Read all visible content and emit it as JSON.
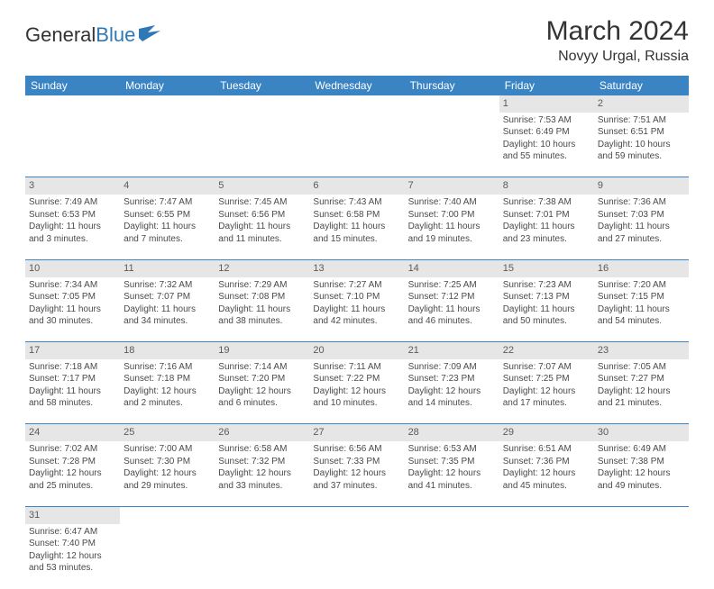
{
  "logo": {
    "text1": "General",
    "text2": "Blue"
  },
  "title": "March 2024",
  "location": "Novyy Urgal, Russia",
  "colors": {
    "header_bg": "#3a84c4",
    "daynum_bg": "#e6e6e6",
    "text": "#333333"
  },
  "weekdays": [
    "Sunday",
    "Monday",
    "Tuesday",
    "Wednesday",
    "Thursday",
    "Friday",
    "Saturday"
  ],
  "weeks": [
    {
      "nums": [
        "",
        "",
        "",
        "",
        "",
        "1",
        "2"
      ],
      "cells": [
        {
          "sr": "",
          "ss": "",
          "dl": ""
        },
        {
          "sr": "",
          "ss": "",
          "dl": ""
        },
        {
          "sr": "",
          "ss": "",
          "dl": ""
        },
        {
          "sr": "",
          "ss": "",
          "dl": ""
        },
        {
          "sr": "",
          "ss": "",
          "dl": ""
        },
        {
          "sr": "Sunrise: 7:53 AM",
          "ss": "Sunset: 6:49 PM",
          "dl": "Daylight: 10 hours and 55 minutes."
        },
        {
          "sr": "Sunrise: 7:51 AM",
          "ss": "Sunset: 6:51 PM",
          "dl": "Daylight: 10 hours and 59 minutes."
        }
      ]
    },
    {
      "nums": [
        "3",
        "4",
        "5",
        "6",
        "7",
        "8",
        "9"
      ],
      "cells": [
        {
          "sr": "Sunrise: 7:49 AM",
          "ss": "Sunset: 6:53 PM",
          "dl": "Daylight: 11 hours and 3 minutes."
        },
        {
          "sr": "Sunrise: 7:47 AM",
          "ss": "Sunset: 6:55 PM",
          "dl": "Daylight: 11 hours and 7 minutes."
        },
        {
          "sr": "Sunrise: 7:45 AM",
          "ss": "Sunset: 6:56 PM",
          "dl": "Daylight: 11 hours and 11 minutes."
        },
        {
          "sr": "Sunrise: 7:43 AM",
          "ss": "Sunset: 6:58 PM",
          "dl": "Daylight: 11 hours and 15 minutes."
        },
        {
          "sr": "Sunrise: 7:40 AM",
          "ss": "Sunset: 7:00 PM",
          "dl": "Daylight: 11 hours and 19 minutes."
        },
        {
          "sr": "Sunrise: 7:38 AM",
          "ss": "Sunset: 7:01 PM",
          "dl": "Daylight: 11 hours and 23 minutes."
        },
        {
          "sr": "Sunrise: 7:36 AM",
          "ss": "Sunset: 7:03 PM",
          "dl": "Daylight: 11 hours and 27 minutes."
        }
      ]
    },
    {
      "nums": [
        "10",
        "11",
        "12",
        "13",
        "14",
        "15",
        "16"
      ],
      "cells": [
        {
          "sr": "Sunrise: 7:34 AM",
          "ss": "Sunset: 7:05 PM",
          "dl": "Daylight: 11 hours and 30 minutes."
        },
        {
          "sr": "Sunrise: 7:32 AM",
          "ss": "Sunset: 7:07 PM",
          "dl": "Daylight: 11 hours and 34 minutes."
        },
        {
          "sr": "Sunrise: 7:29 AM",
          "ss": "Sunset: 7:08 PM",
          "dl": "Daylight: 11 hours and 38 minutes."
        },
        {
          "sr": "Sunrise: 7:27 AM",
          "ss": "Sunset: 7:10 PM",
          "dl": "Daylight: 11 hours and 42 minutes."
        },
        {
          "sr": "Sunrise: 7:25 AM",
          "ss": "Sunset: 7:12 PM",
          "dl": "Daylight: 11 hours and 46 minutes."
        },
        {
          "sr": "Sunrise: 7:23 AM",
          "ss": "Sunset: 7:13 PM",
          "dl": "Daylight: 11 hours and 50 minutes."
        },
        {
          "sr": "Sunrise: 7:20 AM",
          "ss": "Sunset: 7:15 PM",
          "dl": "Daylight: 11 hours and 54 minutes."
        }
      ]
    },
    {
      "nums": [
        "17",
        "18",
        "19",
        "20",
        "21",
        "22",
        "23"
      ],
      "cells": [
        {
          "sr": "Sunrise: 7:18 AM",
          "ss": "Sunset: 7:17 PM",
          "dl": "Daylight: 11 hours and 58 minutes."
        },
        {
          "sr": "Sunrise: 7:16 AM",
          "ss": "Sunset: 7:18 PM",
          "dl": "Daylight: 12 hours and 2 minutes."
        },
        {
          "sr": "Sunrise: 7:14 AM",
          "ss": "Sunset: 7:20 PM",
          "dl": "Daylight: 12 hours and 6 minutes."
        },
        {
          "sr": "Sunrise: 7:11 AM",
          "ss": "Sunset: 7:22 PM",
          "dl": "Daylight: 12 hours and 10 minutes."
        },
        {
          "sr": "Sunrise: 7:09 AM",
          "ss": "Sunset: 7:23 PM",
          "dl": "Daylight: 12 hours and 14 minutes."
        },
        {
          "sr": "Sunrise: 7:07 AM",
          "ss": "Sunset: 7:25 PM",
          "dl": "Daylight: 12 hours and 17 minutes."
        },
        {
          "sr": "Sunrise: 7:05 AM",
          "ss": "Sunset: 7:27 PM",
          "dl": "Daylight: 12 hours and 21 minutes."
        }
      ]
    },
    {
      "nums": [
        "24",
        "25",
        "26",
        "27",
        "28",
        "29",
        "30"
      ],
      "cells": [
        {
          "sr": "Sunrise: 7:02 AM",
          "ss": "Sunset: 7:28 PM",
          "dl": "Daylight: 12 hours and 25 minutes."
        },
        {
          "sr": "Sunrise: 7:00 AM",
          "ss": "Sunset: 7:30 PM",
          "dl": "Daylight: 12 hours and 29 minutes."
        },
        {
          "sr": "Sunrise: 6:58 AM",
          "ss": "Sunset: 7:32 PM",
          "dl": "Daylight: 12 hours and 33 minutes."
        },
        {
          "sr": "Sunrise: 6:56 AM",
          "ss": "Sunset: 7:33 PM",
          "dl": "Daylight: 12 hours and 37 minutes."
        },
        {
          "sr": "Sunrise: 6:53 AM",
          "ss": "Sunset: 7:35 PM",
          "dl": "Daylight: 12 hours and 41 minutes."
        },
        {
          "sr": "Sunrise: 6:51 AM",
          "ss": "Sunset: 7:36 PM",
          "dl": "Daylight: 12 hours and 45 minutes."
        },
        {
          "sr": "Sunrise: 6:49 AM",
          "ss": "Sunset: 7:38 PM",
          "dl": "Daylight: 12 hours and 49 minutes."
        }
      ]
    },
    {
      "nums": [
        "31",
        "",
        "",
        "",
        "",
        "",
        ""
      ],
      "cells": [
        {
          "sr": "Sunrise: 6:47 AM",
          "ss": "Sunset: 7:40 PM",
          "dl": "Daylight: 12 hours and 53 minutes."
        },
        {
          "sr": "",
          "ss": "",
          "dl": ""
        },
        {
          "sr": "",
          "ss": "",
          "dl": ""
        },
        {
          "sr": "",
          "ss": "",
          "dl": ""
        },
        {
          "sr": "",
          "ss": "",
          "dl": ""
        },
        {
          "sr": "",
          "ss": "",
          "dl": ""
        },
        {
          "sr": "",
          "ss": "",
          "dl": ""
        }
      ]
    }
  ]
}
